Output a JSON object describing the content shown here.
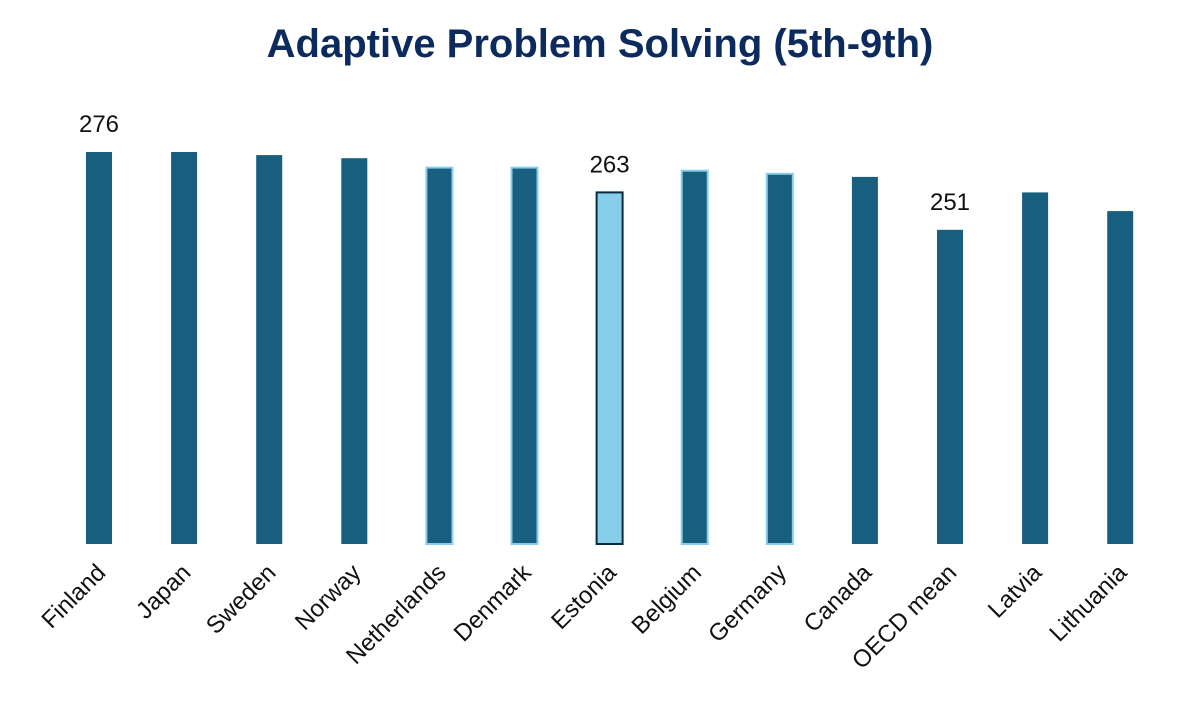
{
  "chart_data": {
    "type": "bar",
    "title": "Adaptive Problem Solving (5th-9th)",
    "xlabel": "",
    "ylabel": "",
    "categories": [
      "Finland",
      "Japan",
      "Sweden",
      "Norway",
      "Netherlands",
      "Denmark",
      "Estonia",
      "Belgium",
      "Germany",
      "Canada",
      "OECD mean",
      "Latvia",
      "Lithuania"
    ],
    "values": [
      276,
      276,
      275,
      274,
      271,
      271,
      263,
      270,
      269,
      268,
      251,
      263,
      257
    ],
    "data_labels": [
      {
        "category": "Finland",
        "text": "276"
      },
      {
        "category": "Estonia",
        "text": "263"
      },
      {
        "category": "OECD mean",
        "text": "251"
      }
    ],
    "ylim": [
      150,
      276
    ],
    "grid": false,
    "legend": "none",
    "colors": {
      "default_bar": "#175e7f",
      "highlight_bar": "#87ceeb",
      "highlight_bar_border": "#0b2a3c",
      "outlined_bar_border": "#87ceeb",
      "title": "#0b2a5e"
    },
    "bar_styles": [
      "default",
      "default",
      "default",
      "default",
      "outlined",
      "outlined",
      "highlight",
      "outlined",
      "outlined",
      "default",
      "default",
      "default",
      "default"
    ]
  }
}
